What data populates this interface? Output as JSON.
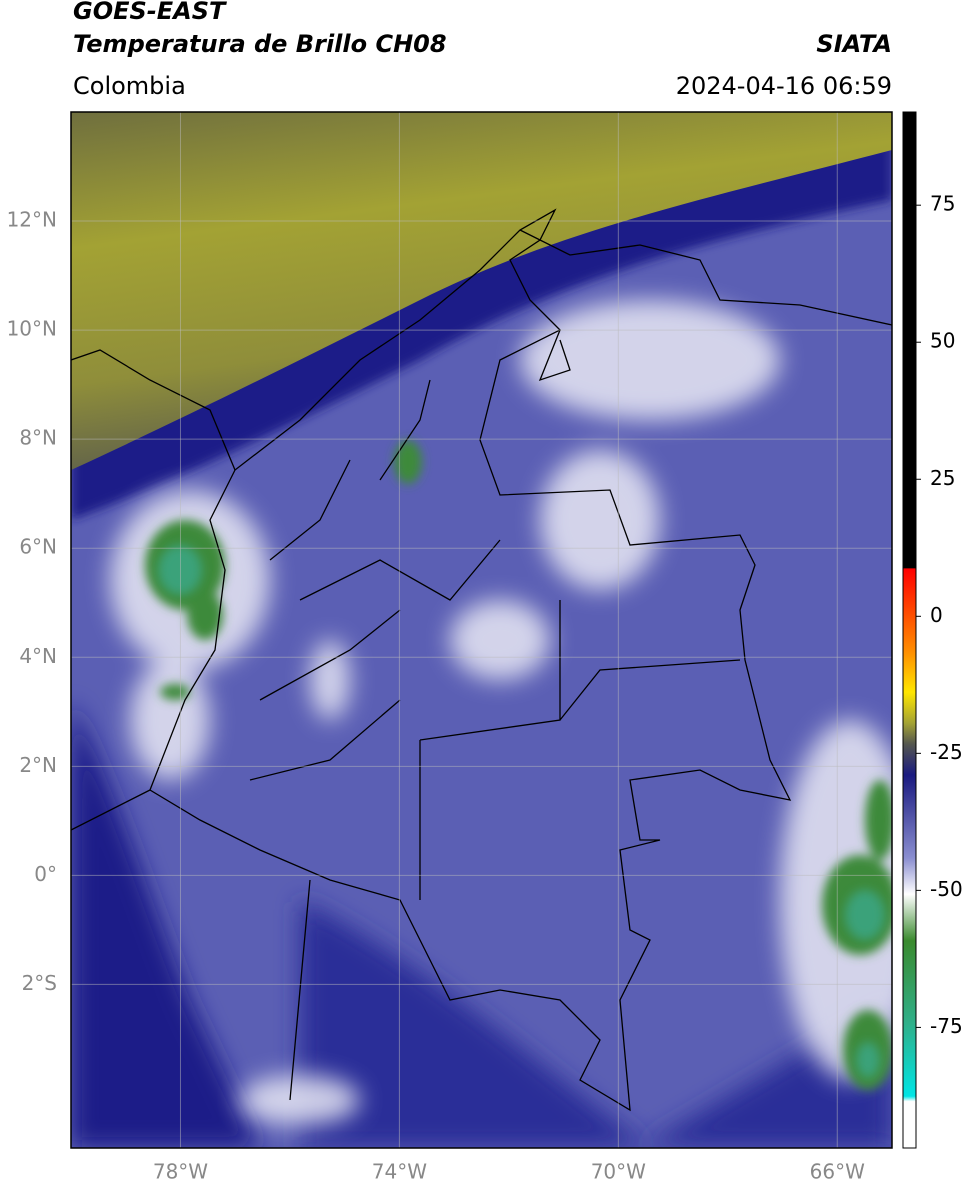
{
  "header": {
    "satellite": "GOES-EAST",
    "product": "Temperatura de Brillo CH08",
    "source": "SIATA",
    "region": "Colombia",
    "timestamp": "2024-04-16 06:59"
  },
  "map": {
    "lonlim": [
      -80,
      -65
    ],
    "latlim": [
      -5,
      14
    ],
    "lonticks": [
      {
        "value": -78,
        "label": "78°W"
      },
      {
        "value": -74,
        "label": "74°W"
      },
      {
        "value": -70,
        "label": "70°W"
      },
      {
        "value": -66,
        "label": "66°W"
      }
    ],
    "latticks": [
      {
        "value": 12,
        "label": "12°N"
      },
      {
        "value": 10,
        "label": "10°N"
      },
      {
        "value": 8,
        "label": "8°N"
      },
      {
        "value": 6,
        "label": "6°N"
      },
      {
        "value": 4,
        "label": "4°N"
      },
      {
        "value": 2,
        "label": "2°N"
      },
      {
        "value": 0,
        "label": "0°"
      },
      {
        "value": -2,
        "label": "2°S"
      }
    ]
  },
  "colorbar": {
    "clim": [
      -97,
      92
    ],
    "ticks": [
      75,
      50,
      25,
      0,
      -25,
      -50,
      -75
    ]
  }
}
